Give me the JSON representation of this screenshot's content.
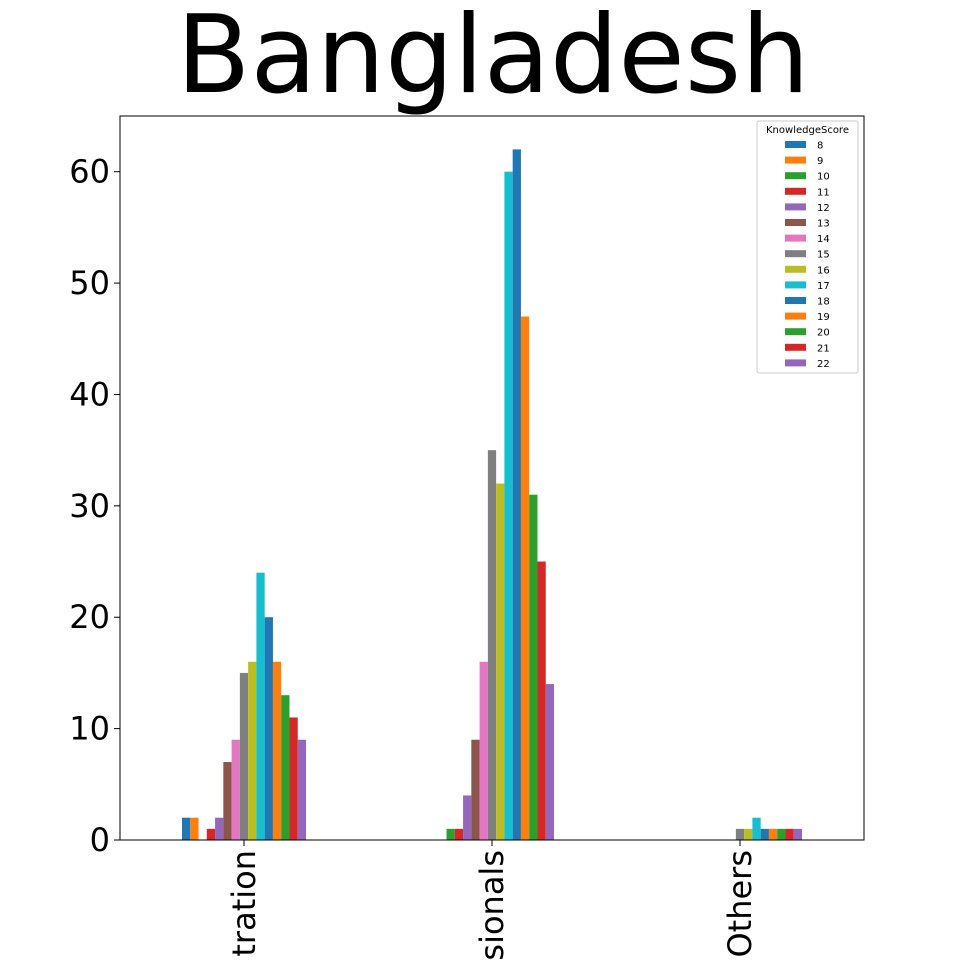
{
  "chart_data": {
    "type": "bar",
    "title": "Bangladesh",
    "xlabel": "",
    "ylabel": "",
    "categories": [
      "tration",
      "sionals",
      "Others"
    ],
    "ylim": [
      0,
      65
    ],
    "yticks": [
      0,
      10,
      20,
      30,
      40,
      50,
      60
    ],
    "grid": false,
    "legend": {
      "title": "KnowledgeScore",
      "placement": "top-right"
    },
    "series": [
      {
        "name": "8",
        "color": "#1f77b4",
        "values": [
          2,
          0,
          0
        ]
      },
      {
        "name": "9",
        "color": "#ff7f0e",
        "values": [
          2,
          0,
          0
        ]
      },
      {
        "name": "10",
        "color": "#2ca02c",
        "values": [
          0,
          1,
          0
        ]
      },
      {
        "name": "11",
        "color": "#d62728",
        "values": [
          1,
          1,
          0
        ]
      },
      {
        "name": "12",
        "color": "#9467bd",
        "values": [
          2,
          4,
          0
        ]
      },
      {
        "name": "13",
        "color": "#8c564b",
        "values": [
          7,
          9,
          0
        ]
      },
      {
        "name": "14",
        "color": "#e377c2",
        "values": [
          9,
          16,
          0
        ]
      },
      {
        "name": "15",
        "color": "#7f7f7f",
        "values": [
          15,
          35,
          1
        ]
      },
      {
        "name": "16",
        "color": "#bcbd22",
        "values": [
          16,
          32,
          1
        ]
      },
      {
        "name": "17",
        "color": "#17becf",
        "values": [
          24,
          60,
          2
        ]
      },
      {
        "name": "18",
        "color": "#1f77b4",
        "values": [
          20,
          62,
          1
        ]
      },
      {
        "name": "19",
        "color": "#ff7f0e",
        "values": [
          16,
          47,
          1
        ]
      },
      {
        "name": "20",
        "color": "#2ca02c",
        "values": [
          13,
          31,
          1
        ]
      },
      {
        "name": "21",
        "color": "#d62728",
        "values": [
          11,
          25,
          1
        ]
      },
      {
        "name": "22",
        "color": "#9467bd",
        "values": [
          9,
          14,
          1
        ]
      }
    ]
  }
}
